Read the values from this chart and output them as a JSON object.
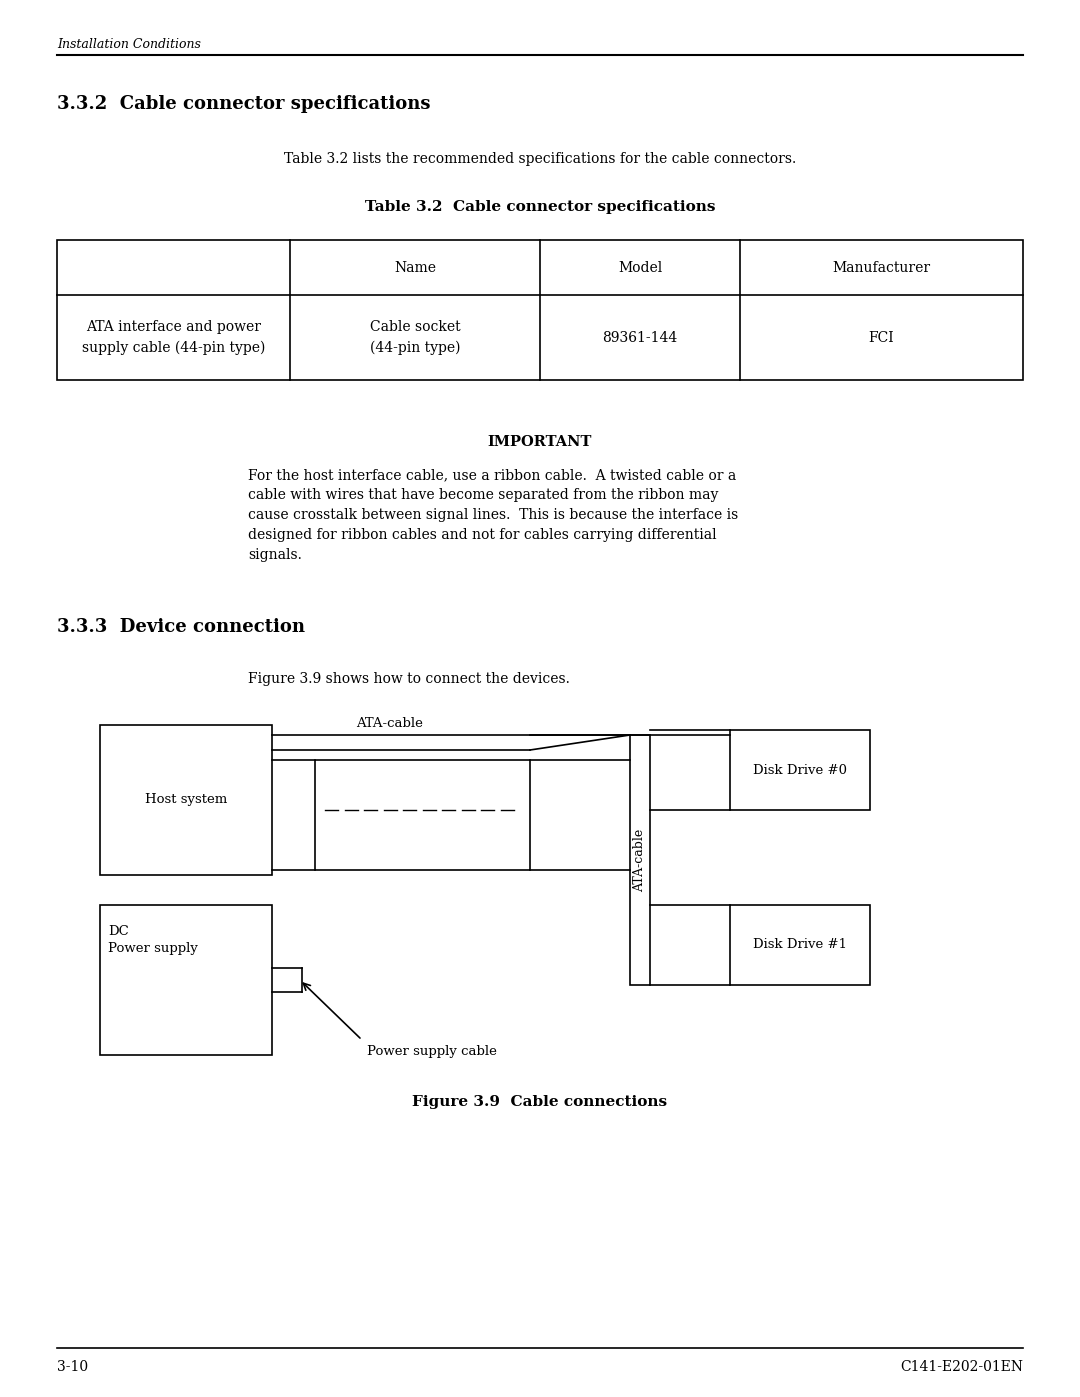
{
  "page_header": "Installation Conditions",
  "section_title": "3.3.2  Cable connector specifications",
  "intro_text": "Table 3.2 lists the recommended specifications for the cable connectors.",
  "table_title": "Table 3.2  Cable connector specifications",
  "table_headers": [
    "",
    "Name",
    "Model",
    "Manufacturer"
  ],
  "table_row": [
    "ATA interface and power\nsupply cable (44-pin type)",
    "Cable socket\n(44-pin type)",
    "89361-144",
    "FCI"
  ],
  "important_title": "IMPORTANT",
  "important_text": "For the host interface cable, use a ribbon cable.  A twisted cable or a\ncable with wires that have become separated from the ribbon may\ncause crosstalk between signal lines.  This is because the interface is\ndesigned for ribbon cables and not for cables carrying differential\nsignals.",
  "section2_title": "3.3.3  Device connection",
  "fig_intro": "Figure 3.9 shows how to connect the devices.",
  "fig_caption": "Figure 3.9  Cable connections",
  "footer_left": "3-10",
  "footer_right": "C141-E202-01EN",
  "bg_color": "#ffffff",
  "text_color": "#000000",
  "line_color": "#000000"
}
